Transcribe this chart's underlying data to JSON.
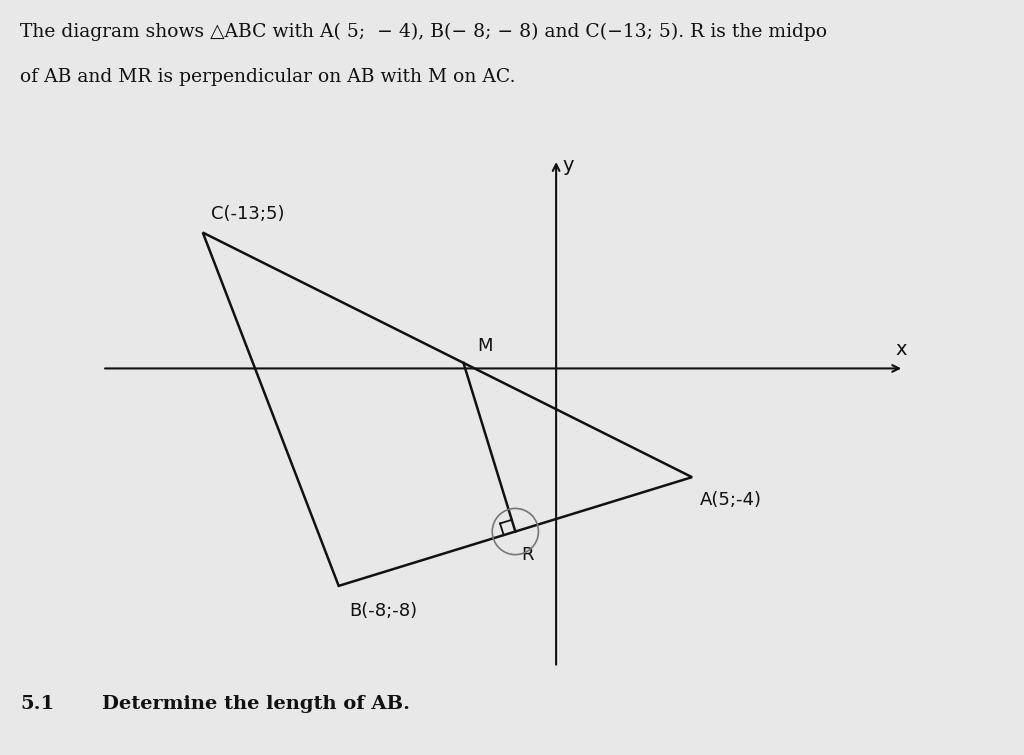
{
  "A": [
    5,
    -4
  ],
  "B": [
    -8,
    -8
  ],
  "C": [
    -13,
    5
  ],
  "bg_color": "#e8e8e8",
  "label_A": "A(5;-4)",
  "label_B": "B(-8;-8)",
  "label_C": "C(-13;5)",
  "label_M": "M",
  "label_R": "R",
  "axis_color": "#111111",
  "triangle_color": "#111111",
  "mr_color": "#111111",
  "text_color": "#111111",
  "title_line1": "The diagram shows △ABC with A( 5;  − 4), B(− 8; − 8) and C(−13; 5). R is the midpo",
  "title_line2": "of AB and MR is perpendicular on AB with M on AC.",
  "footer_num": "5.1",
  "footer_text": "Determine the length of AB.",
  "xlim": [
    -17,
    13
  ],
  "ylim": [
    -12,
    8
  ],
  "sq_size": 0.45
}
